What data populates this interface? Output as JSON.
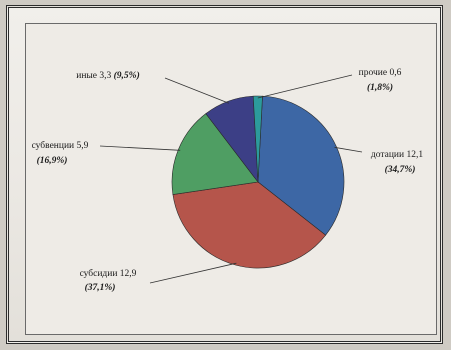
{
  "chart_data": {
    "type": "pie",
    "title": "",
    "start_angle_deg": 3,
    "direction": "clockwise",
    "slices": [
      {
        "label": "дотации",
        "value": 12.1,
        "value_label": "12,1",
        "percent_label": "(34,7%)",
        "color": "#3d67a5"
      },
      {
        "label": "субсидии",
        "value": 12.9,
        "value_label": "12,9",
        "percent_label": "(37,1%)",
        "color": "#b5554b"
      },
      {
        "label": "субвенции",
        "value": 5.9,
        "value_label": "5,9",
        "percent_label": "(16,9%)",
        "color": "#4f9e63"
      },
      {
        "label": "иные",
        "value": 3.3,
        "value_label": "3,3",
        "percent_label": "(9,5%)",
        "color": "#3c3f86"
      },
      {
        "label": "прочие",
        "value": 0.6,
        "value_label": "0,6",
        "percent_label": "(1,8%)",
        "color": "#2c9b9c"
      }
    ]
  }
}
